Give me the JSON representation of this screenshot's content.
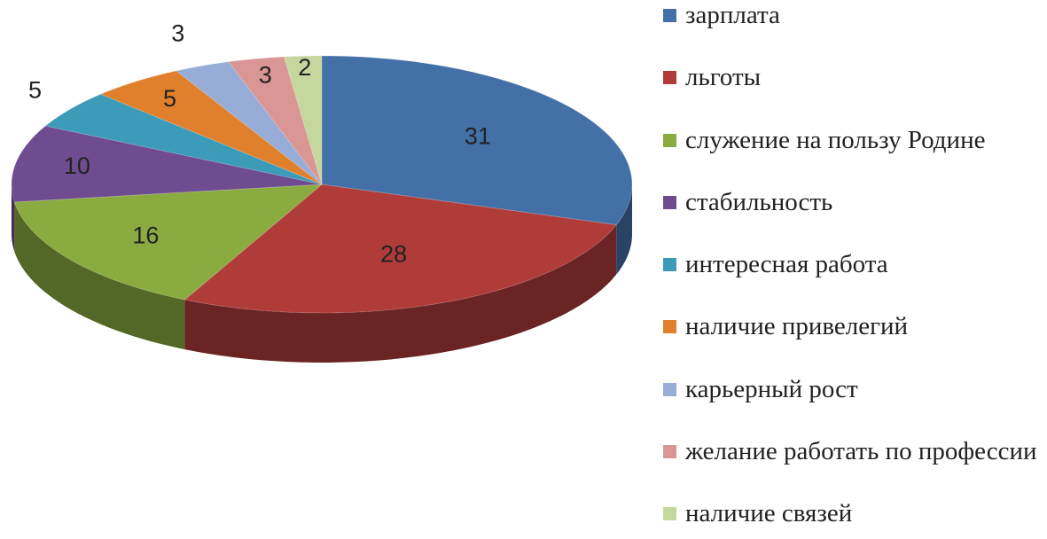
{
  "chart_data": {
    "type": "pie",
    "categories": [
      "зарплата",
      "льготы",
      "служение на пользу Родине",
      "стабильность",
      "интересная работа",
      "наличие привелегий",
      "карьерный рост",
      "желание работать по профессии",
      "наличие связей"
    ],
    "values": [
      31,
      28,
      16,
      10,
      5,
      5,
      3,
      3,
      2
    ],
    "colors": [
      "#4470a8",
      "#b03c3a",
      "#8aab40",
      "#6f4c90",
      "#3b9bb8",
      "#e0802c",
      "#97acd7",
      "#d99694",
      "#c4d79c"
    ],
    "legend": "right"
  }
}
